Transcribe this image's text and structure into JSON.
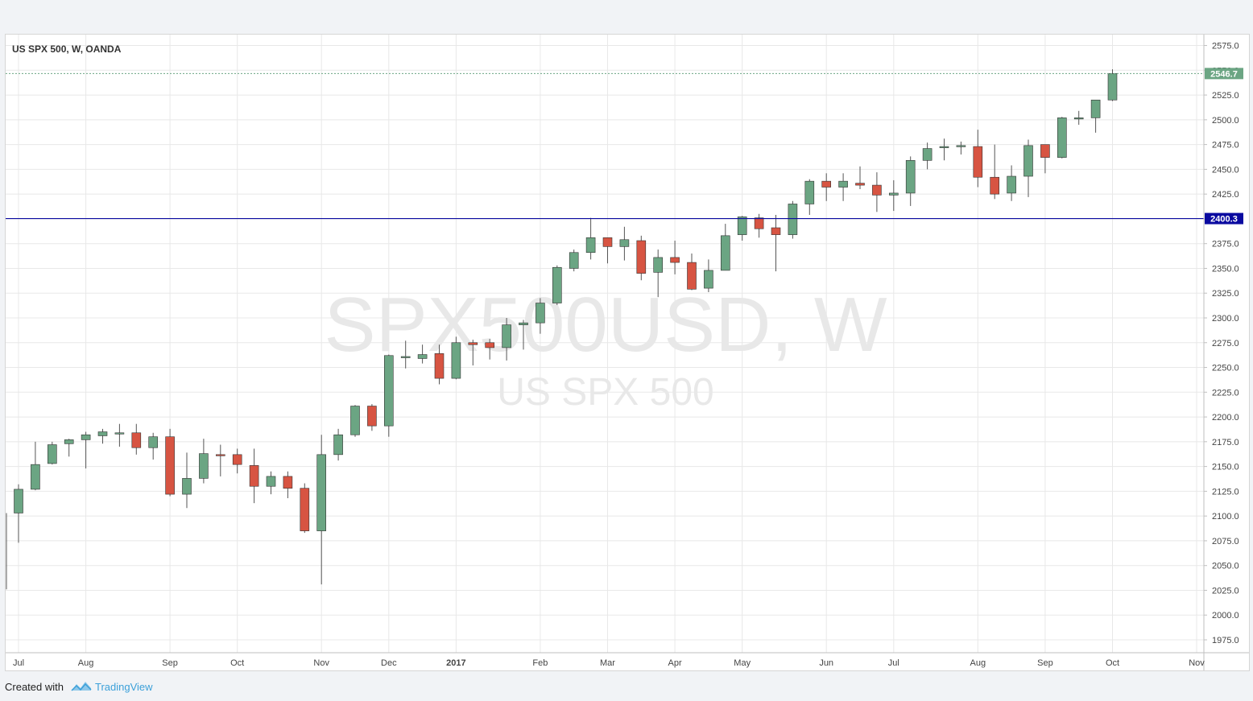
{
  "chart_data": {
    "type": "candlestick",
    "title": "US SPX 500, W, OANDA",
    "watermark": {
      "symbol": "SPX500USD, W",
      "name": "US SPX 500"
    },
    "y_axis": {
      "min": 1962,
      "max": 2586,
      "ticks": [
        1975,
        2000,
        2025,
        2050,
        2075,
        2100,
        2125,
        2150,
        2175,
        2200,
        2225,
        2250,
        2275,
        2300,
        2325,
        2350,
        2375,
        2400,
        2425,
        2450,
        2475,
        2500,
        2525,
        2550,
        2575
      ]
    },
    "y_tick_labels": [
      "1975.0",
      "2000.0",
      "2025.0",
      "2050.0",
      "2075.0",
      "2100.0",
      "2125.0",
      "2150.0",
      "2175.0",
      "2200.0",
      "2225.0",
      "2250.0",
      "2275.0",
      "2300.0",
      "2325.0",
      "2350.0",
      "2375.0",
      "2400.0",
      "2425.0",
      "2450.0",
      "2475.0",
      "2500.0",
      "2525.0",
      "2550.0",
      "2575.0"
    ],
    "x_ticks": [
      {
        "label": "Jul",
        "bar": 0
      },
      {
        "label": "Aug",
        "bar": 4
      },
      {
        "label": "Sep",
        "bar": 9
      },
      {
        "label": "Oct",
        "bar": 13
      },
      {
        "label": "Nov",
        "bar": 18
      },
      {
        "label": "Dec",
        "bar": 22
      },
      {
        "label": "2017",
        "bar": 26
      },
      {
        "label": "Feb",
        "bar": 31
      },
      {
        "label": "Mar",
        "bar": 35
      },
      {
        "label": "Apr",
        "bar": 39
      },
      {
        "label": "May",
        "bar": 43
      },
      {
        "label": "Jun",
        "bar": 48
      },
      {
        "label": "Jul",
        "bar": 52
      },
      {
        "label": "Aug",
        "bar": 57
      },
      {
        "label": "Sep",
        "bar": 61
      },
      {
        "label": "Oct",
        "bar": 65
      },
      {
        "label": "Nov",
        "bar": 70
      }
    ],
    "horizontal_line": {
      "value": 2400.3,
      "label": "2400.3",
      "color": "#0a0aa0"
    },
    "last_price": {
      "value": 2546.7,
      "label": "2546.7",
      "color": "#6ba583"
    },
    "colors": {
      "up": "#6ba583",
      "down": "#d75442",
      "wick": "#555555",
      "grid": "#e8e8e8"
    },
    "candles": [
      {
        "o": 2103,
        "h": 2132,
        "l": 2073,
        "c": 2127
      },
      {
        "o": 2127,
        "h": 2175,
        "l": 2126,
        "c": 2152
      },
      {
        "o": 2153,
        "h": 2175,
        "l": 2152,
        "c": 2172
      },
      {
        "o": 2173,
        "h": 2178,
        "l": 2160,
        "c": 2177
      },
      {
        "o": 2177,
        "h": 2185,
        "l": 2148,
        "c": 2182
      },
      {
        "o": 2181,
        "h": 2188,
        "l": 2173,
        "c": 2185
      },
      {
        "o": 2184,
        "h": 2193,
        "l": 2170,
        "c": 2184
      },
      {
        "o": 2184,
        "h": 2193,
        "l": 2162,
        "c": 2169
      },
      {
        "o": 2169,
        "h": 2184,
        "l": 2157,
        "c": 2180
      },
      {
        "o": 2180,
        "h": 2188,
        "l": 2120,
        "c": 2122
      },
      {
        "o": 2122,
        "h": 2164,
        "l": 2108,
        "c": 2138
      },
      {
        "o": 2138,
        "h": 2178,
        "l": 2133,
        "c": 2163
      },
      {
        "o": 2162,
        "h": 2172,
        "l": 2140,
        "c": 2161
      },
      {
        "o": 2162,
        "h": 2168,
        "l": 2143,
        "c": 2152
      },
      {
        "o": 2151,
        "h": 2168,
        "l": 2113,
        "c": 2130
      },
      {
        "o": 2130,
        "h": 2145,
        "l": 2122,
        "c": 2140
      },
      {
        "o": 2140,
        "h": 2145,
        "l": 2118,
        "c": 2128
      },
      {
        "o": 2128,
        "h": 2133,
        "l": 2083,
        "c": 2085
      },
      {
        "o": 2085,
        "h": 2182,
        "l": 2031,
        "c": 2162
      },
      {
        "o": 2162,
        "h": 2188,
        "l": 2156,
        "c": 2182
      },
      {
        "o": 2182,
        "h": 2212,
        "l": 2180,
        "c": 2211
      },
      {
        "o": 2211,
        "h": 2213,
        "l": 2186,
        "c": 2191
      },
      {
        "o": 2191,
        "h": 2263,
        "l": 2180,
        "c": 2262
      },
      {
        "o": 2261,
        "h": 2277,
        "l": 2249,
        "c": 2261
      },
      {
        "o": 2259,
        "h": 2273,
        "l": 2254,
        "c": 2263
      },
      {
        "o": 2264,
        "h": 2273,
        "l": 2233,
        "c": 2239
      },
      {
        "o": 2239,
        "h": 2281,
        "l": 2238,
        "c": 2275
      },
      {
        "o": 2275,
        "h": 2278,
        "l": 2252,
        "c": 2273
      },
      {
        "o": 2275,
        "h": 2279,
        "l": 2258,
        "c": 2270
      },
      {
        "o": 2270,
        "h": 2300,
        "l": 2257,
        "c": 2293
      },
      {
        "o": 2293,
        "h": 2298,
        "l": 2268,
        "c": 2295
      },
      {
        "o": 2295,
        "h": 2320,
        "l": 2284,
        "c": 2315
      },
      {
        "o": 2315,
        "h": 2353,
        "l": 2313,
        "c": 2351
      },
      {
        "o": 2350,
        "h": 2369,
        "l": 2347,
        "c": 2366
      },
      {
        "o": 2366,
        "h": 2401,
        "l": 2359,
        "c": 2381
      },
      {
        "o": 2381,
        "h": 2381,
        "l": 2355,
        "c": 2372
      },
      {
        "o": 2372,
        "h": 2392,
        "l": 2358,
        "c": 2379
      },
      {
        "o": 2378,
        "h": 2383,
        "l": 2338,
        "c": 2345
      },
      {
        "o": 2346,
        "h": 2369,
        "l": 2321,
        "c": 2361
      },
      {
        "o": 2361,
        "h": 2378,
        "l": 2344,
        "c": 2356
      },
      {
        "o": 2356,
        "h": 2365,
        "l": 2328,
        "c": 2329
      },
      {
        "o": 2330,
        "h": 2359,
        "l": 2326,
        "c": 2348
      },
      {
        "o": 2348,
        "h": 2395,
        "l": 2348,
        "c": 2383
      },
      {
        "o": 2384,
        "h": 2403,
        "l": 2378,
        "c": 2402
      },
      {
        "o": 2401,
        "h": 2405,
        "l": 2381,
        "c": 2390
      },
      {
        "o": 2391,
        "h": 2404,
        "l": 2347,
        "c": 2384
      },
      {
        "o": 2384,
        "h": 2418,
        "l": 2380,
        "c": 2415
      },
      {
        "o": 2415,
        "h": 2440,
        "l": 2404,
        "c": 2438
      },
      {
        "o": 2438,
        "h": 2446,
        "l": 2418,
        "c": 2432
      },
      {
        "o": 2432,
        "h": 2446,
        "l": 2418,
        "c": 2438
      },
      {
        "o": 2436,
        "h": 2453,
        "l": 2430,
        "c": 2434
      },
      {
        "o": 2434,
        "h": 2447,
        "l": 2407,
        "c": 2424
      },
      {
        "o": 2424,
        "h": 2439,
        "l": 2408,
        "c": 2426
      },
      {
        "o": 2426,
        "h": 2463,
        "l": 2413,
        "c": 2459
      },
      {
        "o": 2459,
        "h": 2477,
        "l": 2450,
        "c": 2471
      },
      {
        "o": 2472,
        "h": 2481,
        "l": 2459,
        "c": 2473
      },
      {
        "o": 2473,
        "h": 2478,
        "l": 2465,
        "c": 2474
      },
      {
        "o": 2473,
        "h": 2490,
        "l": 2432,
        "c": 2442
      },
      {
        "o": 2442,
        "h": 2475,
        "l": 2420,
        "c": 2425
      },
      {
        "o": 2426,
        "h": 2454,
        "l": 2418,
        "c": 2443
      },
      {
        "o": 2443,
        "h": 2480,
        "l": 2422,
        "c": 2474
      },
      {
        "o": 2475,
        "h": 2475,
        "l": 2446,
        "c": 2462
      },
      {
        "o": 2462,
        "h": 2503,
        "l": 2461,
        "c": 2502
      },
      {
        "o": 2502,
        "h": 2509,
        "l": 2495,
        "c": 2502
      },
      {
        "o": 2502,
        "h": 2520,
        "l": 2487,
        "c": 2520
      },
      {
        "o": 2520,
        "h": 2551,
        "l": 2519,
        "c": 2546.7
      }
    ]
  },
  "footer": {
    "created_with": "Created with",
    "brand": "TradingView"
  }
}
